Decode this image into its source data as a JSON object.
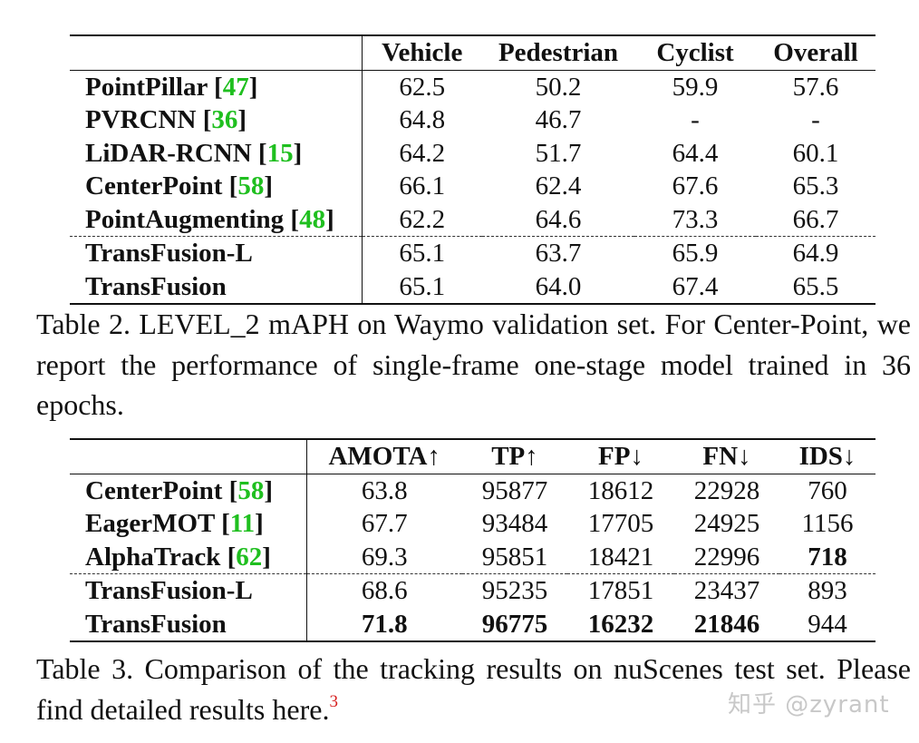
{
  "table2": {
    "headers": [
      "",
      "Vehicle",
      "Pedestrian",
      "Cyclist",
      "Overall"
    ],
    "rows": [
      {
        "name": "PointPillar",
        "cite": "47",
        "values": [
          "62.5",
          "50.2",
          "59.9",
          "57.6"
        ]
      },
      {
        "name": "PVRCNN",
        "cite": "36",
        "values": [
          "64.8",
          "46.7",
          "-",
          "-"
        ]
      },
      {
        "name": "LiDAR-RCNN",
        "cite": "15",
        "values": [
          "64.2",
          "51.7",
          "64.4",
          "60.1"
        ]
      },
      {
        "name": "CenterPoint",
        "cite": "58",
        "values": [
          "66.1",
          "62.4",
          "67.6",
          "65.3"
        ]
      },
      {
        "name": "PointAugmenting",
        "cite": "48",
        "values": [
          "62.2",
          "64.6",
          "73.3",
          "66.7"
        ]
      },
      {
        "name": "TransFusion-L",
        "cite": "",
        "values": [
          "65.1",
          "63.7",
          "65.9",
          "64.9"
        ]
      },
      {
        "name": "TransFusion",
        "cite": "",
        "values": [
          "65.1",
          "64.0",
          "67.4",
          "65.5"
        ]
      }
    ],
    "caption": "Table 2. LEVEL_2 mAPH on Waymo validation set. For Center-Point, we report the performance of single-frame one-stage model trained in 36 epochs."
  },
  "table3": {
    "headers": [
      "",
      "AMOTA↑",
      "TP↑",
      "FP↓",
      "FN↓",
      "IDS↓"
    ],
    "rows": [
      {
        "name": "CenterPoint",
        "cite": "58",
        "values": [
          "63.8",
          "95877",
          "18612",
          "22928",
          "760"
        ]
      },
      {
        "name": "EagerMOT",
        "cite": "11",
        "values": [
          "67.7",
          "93484",
          "17705",
          "24925",
          "1156"
        ]
      },
      {
        "name": "AlphaTrack",
        "cite": "62",
        "values": [
          "69.3",
          "95851",
          "18421",
          "22996",
          "718"
        ]
      },
      {
        "name": "TransFusion-L",
        "cite": "",
        "values": [
          "68.6",
          "95235",
          "17851",
          "23437",
          "893"
        ]
      },
      {
        "name": "TransFusion",
        "cite": "",
        "values": [
          "71.8",
          "96775",
          "16232",
          "21846",
          "944"
        ]
      }
    ],
    "caption_text": "Table 3. Comparison of the tracking results on nuScenes test set. Please find detailed results here.",
    "footnote_mark": "3"
  },
  "watermark": "知乎 @zyrant",
  "colors": {
    "citation": "#1fbf1f",
    "footnote": "#d62020"
  }
}
